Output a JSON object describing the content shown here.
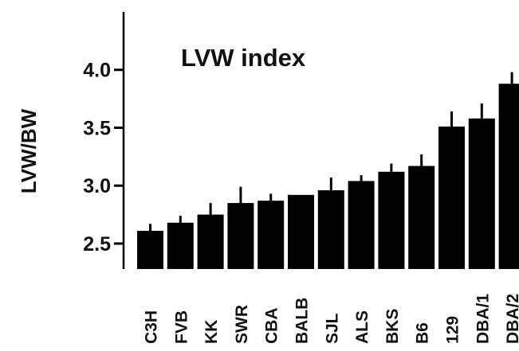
{
  "chart_data": {
    "type": "bar",
    "title": "LVW index",
    "xlabel": "",
    "ylabel": "LVW/BW",
    "categories": [
      "C3H",
      "FVB",
      "KK",
      "SWR",
      "CBA",
      "BALB",
      "SJL",
      "ALS",
      "BKS",
      "B6",
      "129",
      "DBA/1",
      "DBA/2"
    ],
    "values": [
      2.61,
      2.68,
      2.75,
      2.85,
      2.87,
      2.92,
      2.96,
      3.04,
      3.12,
      3.17,
      3.51,
      3.58,
      3.88
    ],
    "errors": [
      0.06,
      0.06,
      0.1,
      0.14,
      0.06,
      0.0,
      0.11,
      0.05,
      0.07,
      0.1,
      0.13,
      0.13,
      0.1
    ],
    "ylim": [
      2.28,
      4.5
    ],
    "yticks": [
      2.5,
      3.0,
      3.5,
      4.0
    ],
    "ytick_labels": [
      "2.5",
      "3.0",
      "3.5",
      "4.0"
    ],
    "grid": false,
    "legend": "none",
    "colors": {
      "bar": "#000000",
      "axis": "#000000",
      "text": "#111111"
    }
  }
}
